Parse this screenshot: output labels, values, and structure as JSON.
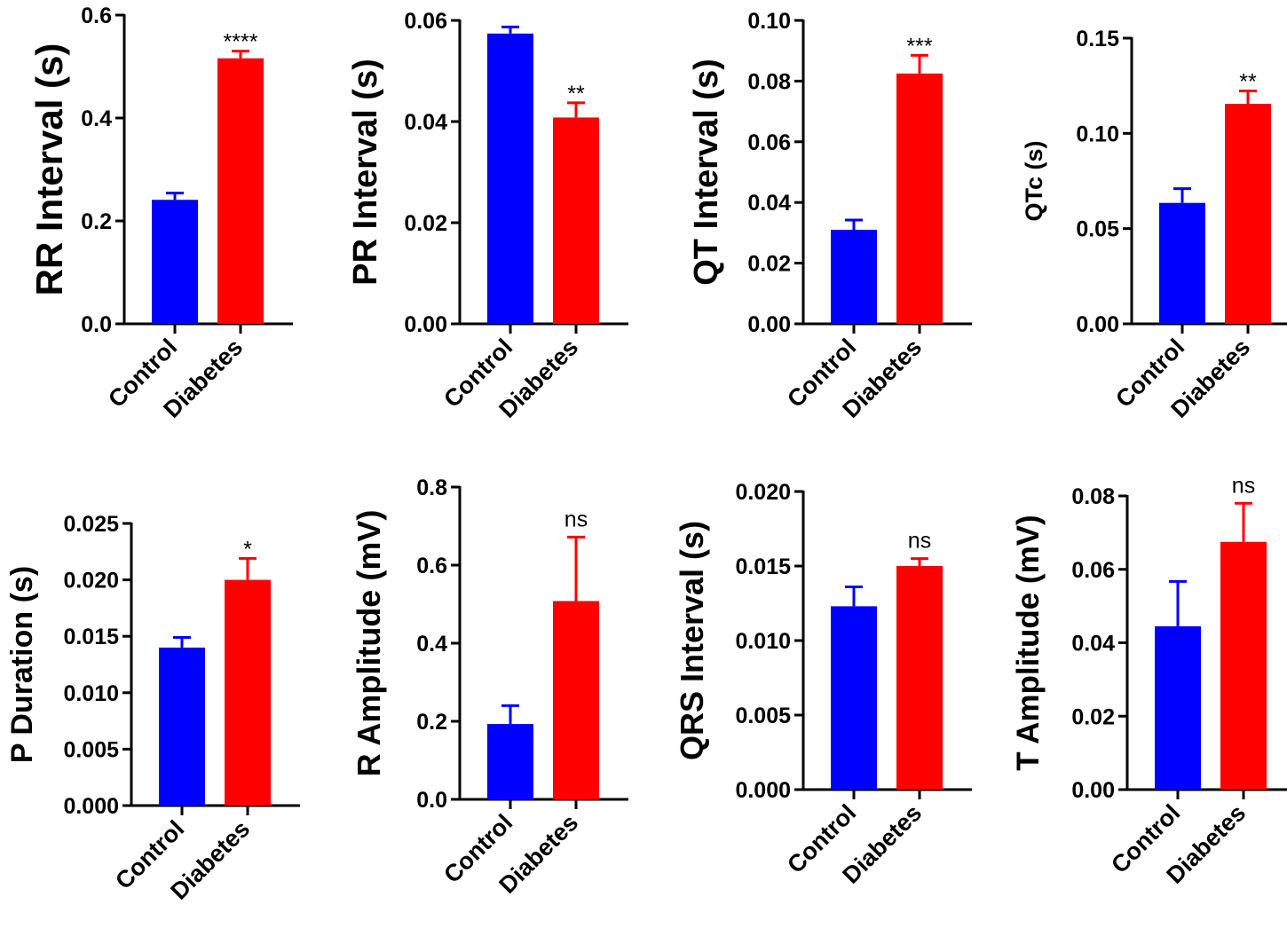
{
  "figure": {
    "categories": [
      "Control",
      "Diabetes"
    ],
    "colors": {
      "control": "#0000ff",
      "diabetes": "#ff0000",
      "axis": "#000000"
    }
  },
  "chart_data": [
    {
      "type": "bar",
      "ylabel": "RR Interval (s)",
      "categories": [
        "Control",
        "Diabetes"
      ],
      "values": [
        0.241,
        0.516
      ],
      "errors": [
        0.013,
        0.014
      ],
      "ylim": [
        0,
        0.6
      ],
      "yticks": [
        "0.0",
        "0.2",
        "0.4",
        "0.6"
      ],
      "significance": "****"
    },
    {
      "type": "bar",
      "ylabel": "PR Interval (s)",
      "categories": [
        "Control",
        "Diabetes"
      ],
      "values": [
        0.0574,
        0.0408
      ],
      "errors": [
        0.0013,
        0.0029
      ],
      "ylim": [
        0,
        0.06
      ],
      "yticks": [
        "0.00",
        "0.02",
        "0.04",
        "0.06"
      ],
      "significance": "**"
    },
    {
      "type": "bar",
      "ylabel": "QT Interval (s)",
      "categories": [
        "Control",
        "Diabetes"
      ],
      "values": [
        0.031,
        0.0825
      ],
      "errors": [
        0.0032,
        0.006
      ],
      "ylim": [
        0,
        0.1
      ],
      "yticks": [
        "0.00",
        "0.02",
        "0.04",
        "0.06",
        "0.08",
        "0.10"
      ],
      "significance": "***"
    },
    {
      "type": "bar",
      "ylabel": "QTc (s)",
      "categories": [
        "Control",
        "Diabetes"
      ],
      "values": [
        0.0635,
        0.1155
      ],
      "errors": [
        0.0075,
        0.0068
      ],
      "ylim": [
        0,
        0.15
      ],
      "yticks": [
        "0.00",
        "0.05",
        "0.10",
        "0.15"
      ],
      "significance": "**"
    },
    {
      "type": "bar",
      "ylabel": "P Duration (s)",
      "categories": [
        "Control",
        "Diabetes"
      ],
      "values": [
        0.014,
        0.02
      ],
      "errors": [
        0.0009,
        0.0019
      ],
      "ylim": [
        0,
        0.025
      ],
      "yticks": [
        "0.000",
        "0.005",
        "0.010",
        "0.015",
        "0.020",
        "0.025"
      ],
      "significance": "*"
    },
    {
      "type": "bar",
      "ylabel": "R Amplitude (mV)",
      "categories": [
        "Control",
        "Diabetes"
      ],
      "values": [
        0.193,
        0.508
      ],
      "errors": [
        0.047,
        0.164
      ],
      "ylim": [
        0,
        0.8
      ],
      "yticks": [
        "0.0",
        "0.2",
        "0.4",
        "0.6",
        "0.8"
      ],
      "significance": "ns"
    },
    {
      "type": "bar",
      "ylabel": "QRS Interval (s)",
      "categories": [
        "Control",
        "Diabetes"
      ],
      "values": [
        0.0123,
        0.015
      ],
      "errors": [
        0.0013,
        0.0005
      ],
      "ylim": [
        0,
        0.02
      ],
      "yticks": [
        "0.000",
        "0.005",
        "0.010",
        "0.015",
        "0.020"
      ],
      "significance": "ns"
    },
    {
      "type": "bar",
      "ylabel": "T Amplitude (mV)",
      "categories": [
        "Control",
        "Diabetes"
      ],
      "values": [
        0.0445,
        0.0675
      ],
      "errors": [
        0.0122,
        0.0105
      ],
      "ylim": [
        0,
        0.08
      ],
      "yticks": [
        "0.00",
        "0.02",
        "0.04",
        "0.06",
        "0.08"
      ],
      "significance": "ns"
    }
  ]
}
